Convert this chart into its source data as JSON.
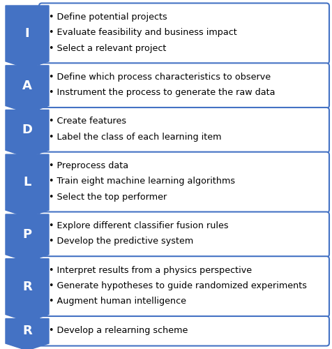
{
  "steps": [
    {
      "letter": "I",
      "bullets": [
        "Define potential projects",
        "Evaluate feasibility and business impact",
        "Select a relevant project"
      ]
    },
    {
      "letter": "A",
      "bullets": [
        "Define which process characteristics to observe",
        "Instrument the process to generate the raw data"
      ]
    },
    {
      "letter": "D",
      "bullets": [
        "Create features",
        "Label the class of each learning item"
      ]
    },
    {
      "letter": "L",
      "bullets": [
        "Preprocess data",
        "Train eight machine learning algorithms",
        "Select the top performer"
      ]
    },
    {
      "letter": "P",
      "bullets": [
        "Explore different classifier fusion rules",
        "Develop the predictive system"
      ]
    },
    {
      "letter": "R",
      "bullets": [
        "Interpret results from a physics perspective",
        "Generate hypotheses to guide randomized experiments",
        "Augment human intelligence"
      ]
    },
    {
      "letter": "R",
      "bullets": [
        "Develop a relearning scheme"
      ]
    }
  ],
  "arrow_color": "#4472C4",
  "box_edge_color": "#4472C4",
  "box_face_color": "#FFFFFF",
  "letter_bg_color": "#4472C4",
  "letter_text_color": "#FFFFFF",
  "bullet_text_color": "#000000",
  "background_color": "#FFFFFF",
  "letter_fontsize": 13,
  "bullet_fontsize": 9.2
}
